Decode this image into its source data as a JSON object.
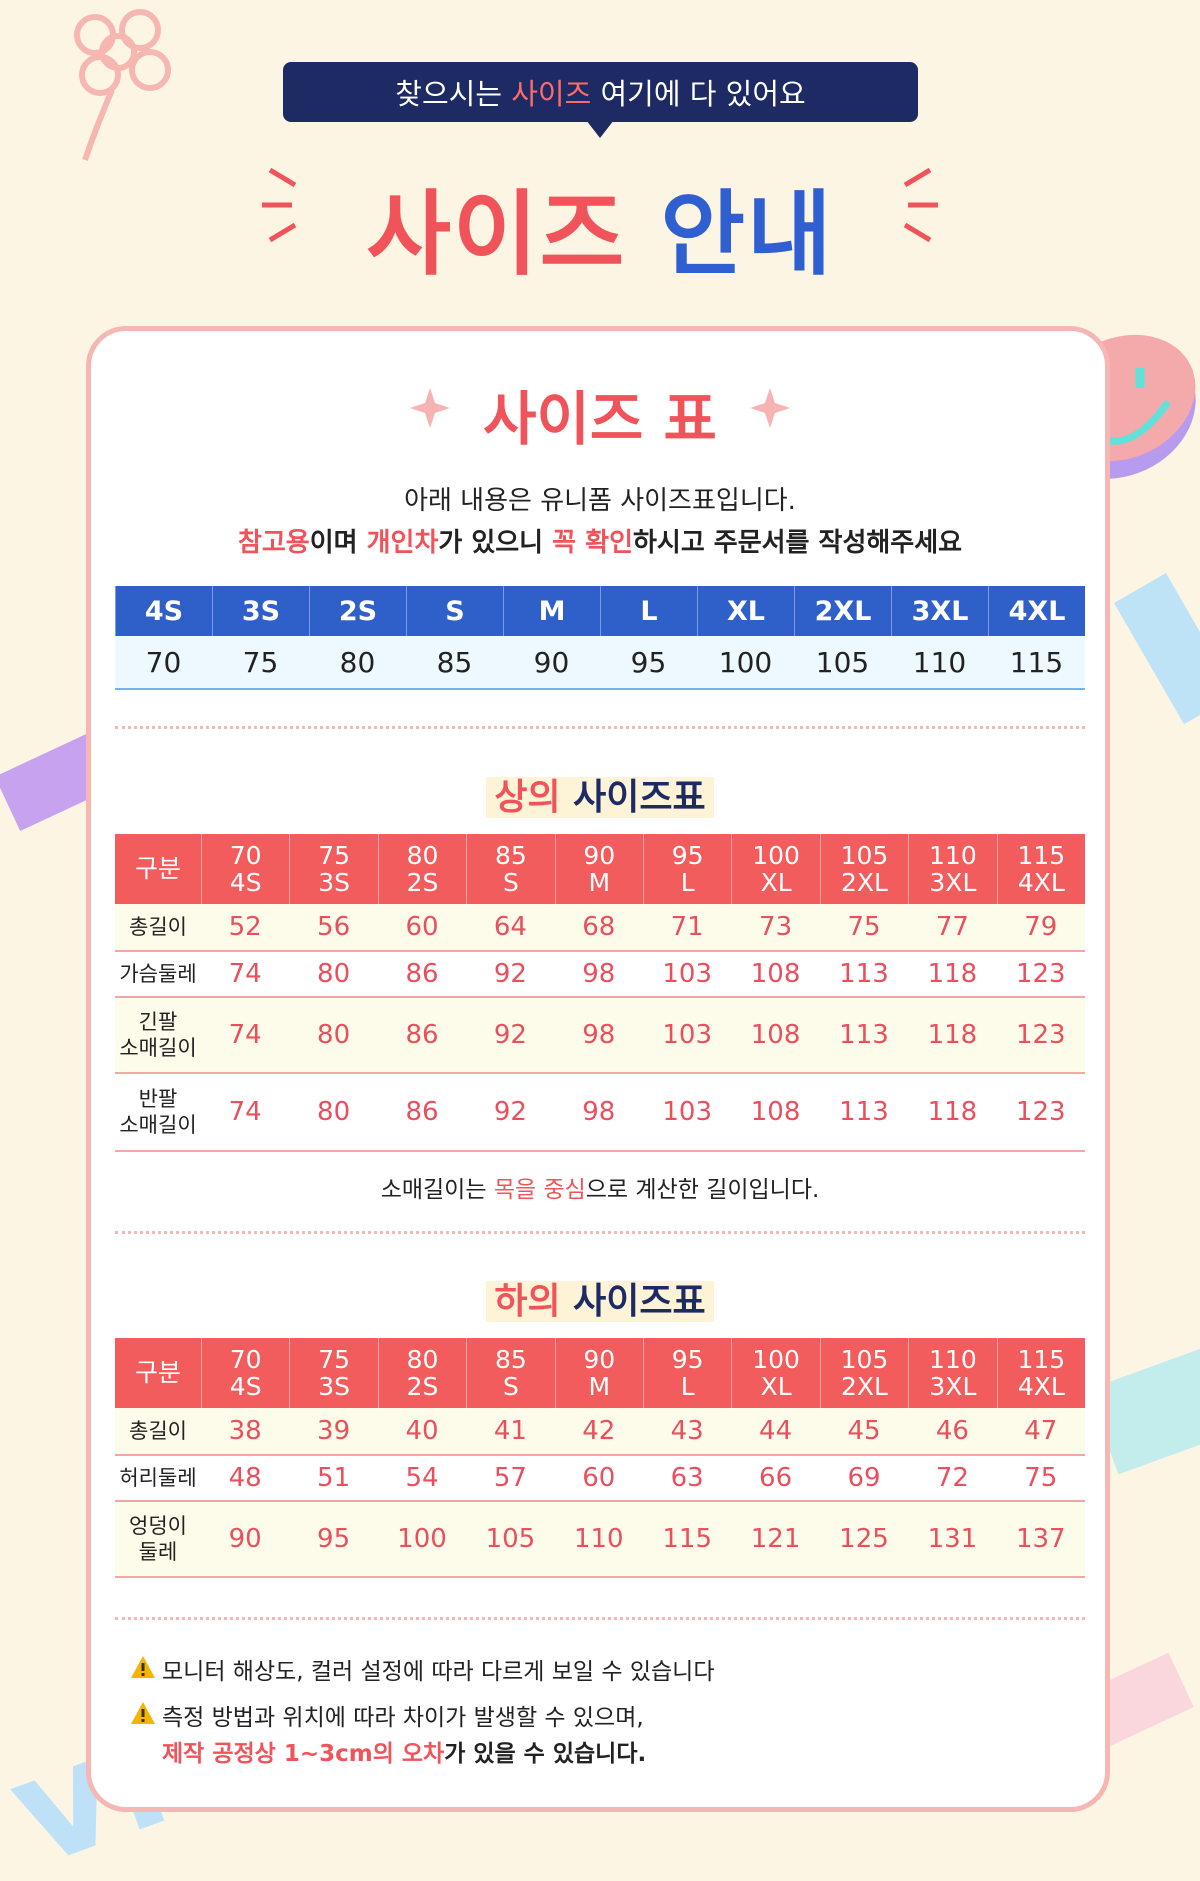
{
  "header": {
    "bubble": [
      {
        "text": "찾으시는 "
      },
      {
        "text": "사이즈",
        "em": true
      },
      {
        "text": " 여기에 다 있어요"
      }
    ],
    "title": [
      {
        "text": "사이즈 ",
        "em": true
      },
      {
        "text": "안내"
      }
    ]
  },
  "intro": {
    "title": "사이즈 표",
    "lines": [
      [
        {
          "text": "아래 내용은 유니폼 사이즈표입니다."
        }
      ],
      [
        {
          "text": "참고용",
          "em": true
        },
        {
          "text": "이며 "
        },
        {
          "text": "개인차",
          "em": true
        },
        {
          "text": "가 있으니 "
        },
        {
          "text": "꼭 확인",
          "em": true
        },
        {
          "text": "하시고 주문서를 작성해주세요"
        }
      ]
    ]
  },
  "size_table": {
    "sizes": [
      "4S",
      "3S",
      "2S",
      "S",
      "M",
      "L",
      "XL",
      "2XL",
      "3XL",
      "4XL"
    ],
    "numbers": [
      70,
      75,
      80,
      85,
      90,
      95,
      100,
      105,
      110,
      115
    ]
  },
  "tops": {
    "title": [
      {
        "text": "상의",
        "em": true
      },
      {
        "text": " 사이즈표"
      }
    ],
    "corner": "구분",
    "columns": [
      [
        "70",
        "4S"
      ],
      [
        "75",
        "3S"
      ],
      [
        "80",
        "2S"
      ],
      [
        "85",
        "S"
      ],
      [
        "90",
        "M"
      ],
      [
        "95",
        "L"
      ],
      [
        "100",
        "XL"
      ],
      [
        "105",
        "2XL"
      ],
      [
        "110",
        "3XL"
      ],
      [
        "115",
        "4XL"
      ]
    ],
    "rows": [
      {
        "label": [
          "총길이"
        ],
        "values": [
          52,
          56,
          60,
          64,
          68,
          71,
          73,
          75,
          77,
          79
        ]
      },
      {
        "label": [
          "가슴둘레"
        ],
        "values": [
          74,
          80,
          86,
          92,
          98,
          103,
          108,
          113,
          118,
          123
        ]
      },
      {
        "label": [
          "긴팔",
          "소매길이"
        ],
        "values": [
          74,
          80,
          86,
          92,
          98,
          103,
          108,
          113,
          118,
          123
        ]
      },
      {
        "label": [
          "반팔",
          "소매길이"
        ],
        "values": [
          74,
          80,
          86,
          92,
          98,
          103,
          108,
          113,
          118,
          123
        ]
      }
    ],
    "note": [
      {
        "text": "소매길이는 "
      },
      {
        "text": "목을 중심",
        "em": true
      },
      {
        "text": "으로 계산한 길이입니다."
      }
    ]
  },
  "bottoms": {
    "title": [
      {
        "text": "하의",
        "em": true
      },
      {
        "text": " 사이즈표"
      }
    ],
    "corner": "구분",
    "columns": [
      [
        "70",
        "4S"
      ],
      [
        "75",
        "3S"
      ],
      [
        "80",
        "2S"
      ],
      [
        "85",
        "S"
      ],
      [
        "90",
        "M"
      ],
      [
        "95",
        "L"
      ],
      [
        "100",
        "XL"
      ],
      [
        "105",
        "2XL"
      ],
      [
        "110",
        "3XL"
      ],
      [
        "115",
        "4XL"
      ]
    ],
    "rows": [
      {
        "label": [
          "총길이"
        ],
        "values": [
          38,
          39,
          40,
          41,
          42,
          43,
          44,
          45,
          46,
          47
        ]
      },
      {
        "label": [
          "허리둘레"
        ],
        "values": [
          48,
          51,
          54,
          57,
          60,
          63,
          66,
          69,
          72,
          75
        ]
      },
      {
        "label": [
          "엉덩이",
          "둘레"
        ],
        "values": [
          90,
          95,
          100,
          105,
          110,
          115,
          121,
          125,
          131,
          137
        ]
      }
    ]
  },
  "notices": [
    {
      "lines": [
        [
          {
            "text": "모니터 해상도, 컬러 설정에 따라 다르게 보일 수 있습니다"
          }
        ]
      ]
    },
    {
      "lines": [
        [
          {
            "text": "측정 방법과 위치에 따라 차이가 발생할 수 있으며,"
          }
        ],
        [
          {
            "text": "제작 공정상 1~3cm의 오차",
            "em": true
          },
          {
            "text": "가 있을 수 있습니다."
          }
        ]
      ]
    }
  ]
}
